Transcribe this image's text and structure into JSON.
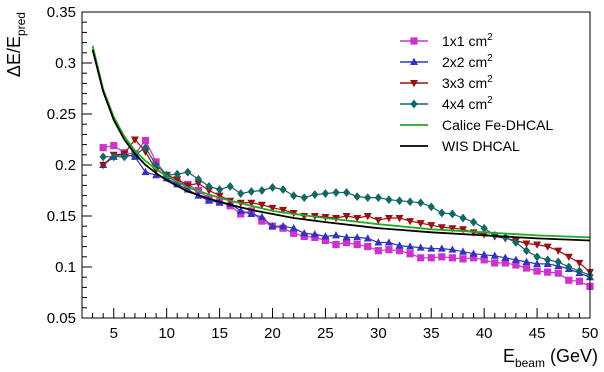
{
  "chart_data": {
    "type": "line",
    "title": "",
    "xlabel": {
      "main": "E",
      "sub": "beam",
      "rest": " (GeV)"
    },
    "ylabel": {
      "main": "ΔE/E",
      "sub": "pred"
    },
    "xlim": [
      2,
      50
    ],
    "ylim": [
      0.05,
      0.35
    ],
    "x_ticks": [
      5,
      10,
      15,
      20,
      25,
      30,
      35,
      40,
      45,
      50
    ],
    "y_ticks": [
      0.05,
      0.1,
      0.15,
      0.2,
      0.25,
      0.3,
      0.35
    ],
    "x_tick_labels": [
      "5",
      "10",
      "15",
      "20",
      "25",
      "30",
      "35",
      "40",
      "45",
      "50"
    ],
    "y_tick_labels": [
      "0.05",
      "0.1",
      "0.15",
      "0.2",
      "0.25",
      "0.3",
      "0.35"
    ],
    "grid": false,
    "legend_position": "top-right",
    "series": [
      {
        "name": "1x1 cm",
        "name_sup": "2",
        "color": "#cc33cc",
        "marker": "square",
        "x": [
          4,
          5,
          6,
          7,
          8,
          9,
          10,
          11,
          12,
          13,
          14,
          15,
          16,
          17,
          18,
          19,
          20,
          21,
          22,
          23,
          24,
          25,
          26,
          27,
          28,
          29,
          30,
          31,
          32,
          33,
          34,
          35,
          36,
          37,
          38,
          39,
          40,
          41,
          42,
          43,
          44,
          45,
          46,
          47,
          48,
          49,
          50
        ],
        "y": [
          0.217,
          0.219,
          0.212,
          0.211,
          0.224,
          0.203,
          0.19,
          0.183,
          0.181,
          0.175,
          0.167,
          0.164,
          0.16,
          0.152,
          0.155,
          0.145,
          0.14,
          0.138,
          0.133,
          0.13,
          0.129,
          0.126,
          0.122,
          0.124,
          0.122,
          0.12,
          0.116,
          0.117,
          0.116,
          0.113,
          0.109,
          0.109,
          0.11,
          0.109,
          0.108,
          0.109,
          0.107,
          0.104,
          0.104,
          0.102,
          0.099,
          0.096,
          0.095,
          0.094,
          0.087,
          0.086,
          0.081
        ]
      },
      {
        "name": "2x2 cm",
        "name_sup": "2",
        "color": "#3333bb",
        "marker": "triangle-up",
        "x": [
          4,
          5,
          6,
          7,
          8,
          9,
          10,
          11,
          12,
          13,
          14,
          15,
          16,
          17,
          18,
          19,
          20,
          21,
          22,
          23,
          24,
          25,
          26,
          27,
          28,
          29,
          30,
          31,
          32,
          33,
          34,
          35,
          36,
          37,
          38,
          39,
          40,
          41,
          42,
          43,
          44,
          45,
          46,
          47,
          48,
          49,
          50
        ],
        "y": [
          0.2,
          0.208,
          0.211,
          0.208,
          0.193,
          0.19,
          0.187,
          0.181,
          0.176,
          0.17,
          0.165,
          0.163,
          0.162,
          0.155,
          0.152,
          0.149,
          0.14,
          0.14,
          0.138,
          0.133,
          0.132,
          0.13,
          0.131,
          0.129,
          0.129,
          0.128,
          0.124,
          0.124,
          0.121,
          0.12,
          0.119,
          0.118,
          0.118,
          0.117,
          0.115,
          0.113,
          0.112,
          0.111,
          0.109,
          0.107,
          0.105,
          0.103,
          0.103,
          0.101,
          0.098,
          0.094,
          0.09
        ]
      },
      {
        "name": "3x3 cm",
        "name_sup": "2",
        "color": "#991111",
        "marker": "triangle-down",
        "x": [
          4,
          5,
          6,
          7,
          8,
          9,
          10,
          11,
          12,
          13,
          14,
          15,
          16,
          17,
          18,
          19,
          20,
          21,
          22,
          23,
          24,
          25,
          26,
          27,
          28,
          29,
          30,
          31,
          32,
          33,
          34,
          35,
          36,
          37,
          38,
          39,
          40,
          41,
          42,
          43,
          44,
          45,
          46,
          47,
          48,
          49,
          50
        ],
        "y": [
          0.2,
          0.21,
          0.211,
          0.225,
          0.213,
          0.195,
          0.19,
          0.186,
          0.18,
          0.182,
          0.175,
          0.17,
          0.165,
          0.163,
          0.163,
          0.161,
          0.158,
          0.156,
          0.153,
          0.15,
          0.15,
          0.149,
          0.148,
          0.15,
          0.148,
          0.15,
          0.146,
          0.148,
          0.148,
          0.145,
          0.143,
          0.141,
          0.139,
          0.138,
          0.137,
          0.134,
          0.132,
          0.13,
          0.128,
          0.126,
          0.123,
          0.122,
          0.12,
          0.116,
          0.11,
          0.104,
          0.095
        ]
      },
      {
        "name": "4x4 cm",
        "name_sup": "2",
        "color": "#116666",
        "marker": "diamond",
        "x": [
          4,
          5,
          6,
          7,
          8,
          9,
          10,
          11,
          12,
          13,
          14,
          15,
          16,
          17,
          18,
          19,
          20,
          21,
          22,
          23,
          24,
          25,
          26,
          27,
          28,
          29,
          30,
          31,
          32,
          33,
          34,
          35,
          36,
          37,
          38,
          39,
          40,
          41,
          42,
          43,
          44,
          45,
          46,
          47,
          48,
          49,
          50
        ],
        "y": [
          0.208,
          0.208,
          0.208,
          0.21,
          0.217,
          0.2,
          0.19,
          0.191,
          0.193,
          0.186,
          0.179,
          0.176,
          0.179,
          0.172,
          0.174,
          0.175,
          0.178,
          0.176,
          0.17,
          0.168,
          0.171,
          0.172,
          0.173,
          0.173,
          0.169,
          0.168,
          0.168,
          0.166,
          0.165,
          0.164,
          0.163,
          0.159,
          0.153,
          0.152,
          0.148,
          0.144,
          0.138,
          0.131,
          0.129,
          0.124,
          0.116,
          0.11,
          0.107,
          0.105,
          0.1,
          0.096,
          0.092
        ]
      },
      {
        "name": "Calice Fe-DHCAL",
        "color": "#22aa22",
        "marker": "none",
        "x": [
          3,
          4,
          5,
          6,
          7,
          8,
          9,
          10,
          12,
          14,
          16,
          18,
          20,
          22,
          25,
          30,
          35,
          40,
          45,
          50
        ],
        "y": [
          0.317,
          0.274,
          0.247,
          0.228,
          0.214,
          0.204,
          0.196,
          0.189,
          0.178,
          0.171,
          0.165,
          0.16,
          0.155,
          0.152,
          0.148,
          0.142,
          0.137,
          0.134,
          0.131,
          0.129
        ]
      },
      {
        "name": "WIS DHCAL",
        "color": "#000000",
        "marker": "none",
        "x": [
          3,
          4,
          5,
          6,
          7,
          8,
          9,
          10,
          12,
          14,
          16,
          18,
          20,
          22,
          25,
          30,
          35,
          40,
          45,
          50
        ],
        "y": [
          0.313,
          0.272,
          0.244,
          0.225,
          0.211,
          0.2,
          0.192,
          0.185,
          0.174,
          0.167,
          0.161,
          0.156,
          0.152,
          0.148,
          0.144,
          0.138,
          0.134,
          0.131,
          0.128,
          0.126
        ]
      }
    ]
  }
}
